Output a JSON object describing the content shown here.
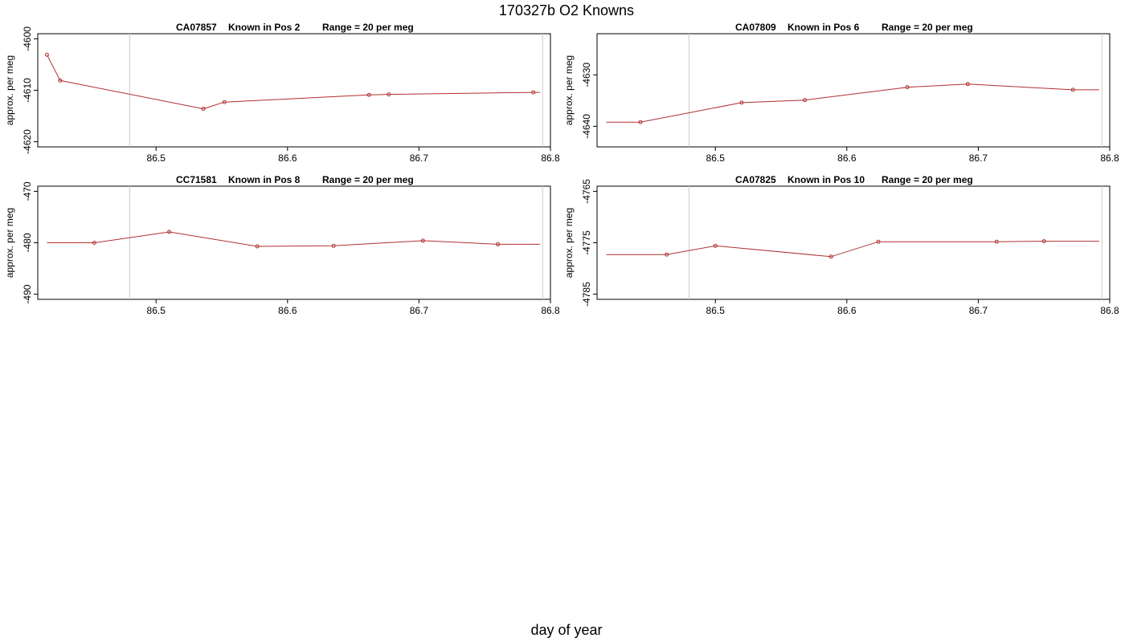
{
  "figure": {
    "title": "170327b   O2 Knowns",
    "xlabel": "day of year"
  },
  "chart_data": [
    {
      "type": "line",
      "title_parts": [
        "CA07857",
        "Known in Pos 2",
        "Range = 20 per meg"
      ],
      "ylabel": "approx. per meg",
      "xlim": [
        86.41,
        86.8
      ],
      "ylim": [
        -4621,
        -4599
      ],
      "xticks": [
        86.5,
        86.6,
        86.7,
        86.8
      ],
      "xtick_labels": [
        "86.5",
        "86.6",
        "86.7",
        "86.8"
      ],
      "yticks": [
        -4600,
        -4610,
        -4620
      ],
      "ytick_labels": [
        "-4600",
        "-4610",
        "-4620"
      ],
      "vlines": [
        86.48,
        86.794
      ],
      "line_color": "#b03030",
      "guide_color": "#cccccc",
      "series": [
        {
          "x": [
            86.417,
            86.427,
            86.536,
            86.552,
            86.662,
            86.677,
            86.787,
            86.792
          ],
          "y": [
            -4603.1,
            -4608.1,
            -4613.6,
            -4612.3,
            -4610.9,
            -4610.8,
            -4610.4,
            -4610.4
          ],
          "markers": [
            true,
            true,
            true,
            true,
            true,
            true,
            true,
            false
          ]
        }
      ]
    },
    {
      "type": "line",
      "title_parts": [
        "CA07809",
        "Known in Pos 6",
        "Range = 20 per meg"
      ],
      "ylabel": "approx. per meg",
      "xlim": [
        86.41,
        86.8
      ],
      "ylim": [
        -4644,
        -4622
      ],
      "xticks": [
        86.5,
        86.6,
        86.7,
        86.8
      ],
      "xtick_labels": [
        "86.5",
        "86.6",
        "86.7",
        "86.8"
      ],
      "yticks": [
        -4630,
        -4640
      ],
      "ytick_labels": [
        "-4630",
        "-4640"
      ],
      "vlines": [
        86.48,
        86.794
      ],
      "line_color": "#b03030",
      "guide_color": "#cccccc",
      "series": [
        {
          "x": [
            86.417,
            86.443,
            86.52,
            86.568,
            86.646,
            86.692,
            86.772,
            86.792
          ],
          "y": [
            -4639.2,
            -4639.2,
            -4635.4,
            -4634.9,
            -4632.4,
            -4631.8,
            -4632.9,
            -4632.9
          ],
          "markers": [
            false,
            true,
            true,
            true,
            true,
            true,
            true,
            false
          ]
        }
      ]
    },
    {
      "type": "line",
      "title_parts": [
        "CC71581",
        "Known in Pos 8",
        "Range = 20 per meg"
      ],
      "ylabel": "approx. per meg",
      "xlim": [
        86.41,
        86.8
      ],
      "ylim": [
        -491,
        -469
      ],
      "xticks": [
        86.5,
        86.6,
        86.7,
        86.8
      ],
      "xtick_labels": [
        "86.5",
        "86.6",
        "86.7",
        "86.8"
      ],
      "yticks": [
        -470,
        -480,
        -490
      ],
      "ytick_labels": [
        "-470",
        "-480",
        "-490"
      ],
      "vlines": [
        86.48,
        86.794
      ],
      "line_color": "#b03030",
      "guide_color": "#cccccc",
      "series": [
        {
          "x": [
            86.417,
            86.453,
            86.51,
            86.577,
            86.635,
            86.703,
            86.76,
            86.792
          ],
          "y": [
            -480.0,
            -480.0,
            -477.9,
            -480.7,
            -480.6,
            -479.6,
            -480.3,
            -480.3
          ],
          "markers": [
            false,
            true,
            true,
            true,
            true,
            true,
            true,
            false
          ]
        }
      ]
    },
    {
      "type": "line",
      "title_parts": [
        "CA07825",
        "Known in Pos 10",
        "Range = 20 per meg"
      ],
      "ylabel": "approx. per meg",
      "xlim": [
        86.41,
        86.8
      ],
      "ylim": [
        -4786,
        -4764
      ],
      "xticks": [
        86.5,
        86.6,
        86.7,
        86.8
      ],
      "xtick_labels": [
        "86.5",
        "86.6",
        "86.7",
        "86.8"
      ],
      "yticks": [
        -4765,
        -4775,
        -4785
      ],
      "ytick_labels": [
        "-4765",
        "-4775",
        "-4785"
      ],
      "vlines": [
        86.48,
        86.794
      ],
      "line_color": "#b03030",
      "guide_color": "#cccccc",
      "series": [
        {
          "x": [
            86.417,
            86.463,
            86.5,
            86.588,
            86.624,
            86.714,
            86.75,
            86.792
          ],
          "y": [
            -4777.3,
            -4777.3,
            -4775.6,
            -4777.7,
            -4774.8,
            -4774.8,
            -4774.7,
            -4774.7
          ],
          "markers": [
            false,
            true,
            true,
            true,
            true,
            true,
            true,
            false
          ]
        }
      ]
    }
  ]
}
